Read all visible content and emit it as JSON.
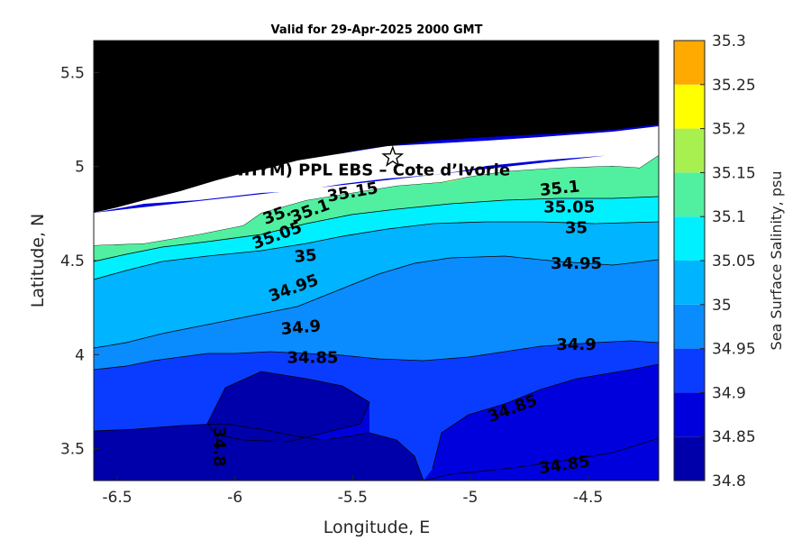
{
  "chart_data": {
    "type": "contour",
    "title": "Valid for 29-Apr-2025 2000 GMT",
    "xlabel": "Longitude, E",
    "ylabel": "Latitude, N",
    "colorbar_label": "Sea Surface Salinity, psu",
    "xlim": [
      -6.6,
      -4.2
    ],
    "ylim": [
      3.33,
      5.67
    ],
    "xticks": [
      -6.5,
      -6,
      -5.5,
      -5,
      -4.5
    ],
    "xtick_labels": [
      "-6.5",
      "-6",
      "-5.5",
      "-5",
      "-4.5"
    ],
    "yticks": [
      3.5,
      4,
      4.5,
      5,
      5.5
    ],
    "ytick_labels": [
      "3.5",
      "4",
      "4.5",
      "5",
      "5.5"
    ],
    "color_levels": [
      34.8,
      34.85,
      34.9,
      34.95,
      35,
      35.05,
      35.1,
      35.15,
      35.2,
      35.25,
      35.3
    ],
    "colorbar_tick_labels": [
      "34.8",
      "34.85",
      "34.9",
      "34.95",
      "35",
      "35.05",
      "35.1",
      "35.15",
      "35.2",
      "35.25",
      "35.3"
    ],
    "band_colors": [
      "#0000aa",
      "#0000dd",
      "#0a3cff",
      "#0a8cff",
      "#00b4ff",
      "#00f0ff",
      "#50f0a0",
      "#a8f050",
      "#ffff00",
      "#ffaa00",
      "#ff5500"
    ],
    "land_color": "#000000",
    "site": {
      "label": "(ONHYM) PPL EBS  – Cote d’Ivorie",
      "lon": -5.33,
      "lat": 5.05
    },
    "contour_labels": [
      {
        "text": "35.1",
        "lon": -4.62,
        "lat": 4.88,
        "rotate": -6
      },
      {
        "text": "35.05",
        "lon": -4.58,
        "lat": 4.78,
        "rotate": 0
      },
      {
        "text": "35",
        "lon": -4.55,
        "lat": 4.67,
        "rotate": 0
      },
      {
        "text": "34.95",
        "lon": -4.55,
        "lat": 4.48,
        "rotate": 0
      },
      {
        "text": "34.9",
        "lon": -4.55,
        "lat": 4.05,
        "rotate": 0
      },
      {
        "text": "35.15",
        "lon": -5.5,
        "lat": 4.86,
        "rotate": -10
      },
      {
        "text": "35.1",
        "lon": -5.68,
        "lat": 4.76,
        "rotate": -20
      },
      {
        "text": "35.",
        "lon": -5.82,
        "lat": 4.74,
        "rotate": -20
      },
      {
        "text": "35.05",
        "lon": -5.82,
        "lat": 4.63,
        "rotate": -20
      },
      {
        "text": "35",
        "lon": -5.7,
        "lat": 4.52,
        "rotate": -5
      },
      {
        "text": "34.95",
        "lon": -5.75,
        "lat": 4.35,
        "rotate": -20
      },
      {
        "text": "34.9",
        "lon": -5.72,
        "lat": 4.14,
        "rotate": -5
      },
      {
        "text": "34.85",
        "lon": -5.67,
        "lat": 3.98,
        "rotate": 0
      },
      {
        "text": "34.85",
        "lon": -4.82,
        "lat": 3.71,
        "rotate": -20
      },
      {
        "text": "34.85",
        "lon": -4.6,
        "lat": 3.41,
        "rotate": -8
      },
      {
        "text": "34.8",
        "lon": -6.07,
        "lat": 3.51,
        "rotate": 90
      }
    ]
  }
}
